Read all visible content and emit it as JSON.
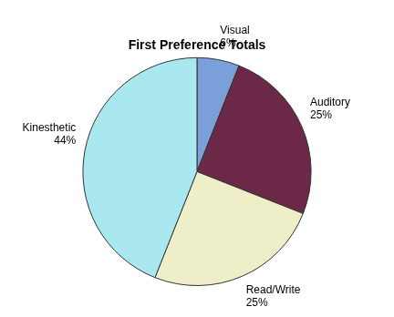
{
  "chart_data": {
    "type": "pie",
    "title": "First Preference Totals",
    "categories": [
      "Visual",
      "Auditory",
      "Read/Write",
      "Kinesthetic"
    ],
    "values": [
      6,
      25,
      25,
      44
    ],
    "value_labels": [
      "6%",
      "25%",
      "25%",
      "44%"
    ],
    "colors": [
      "#7b9fd9",
      "#6b2847",
      "#eeeec8",
      "#aae8f0"
    ],
    "data_labels": true
  }
}
